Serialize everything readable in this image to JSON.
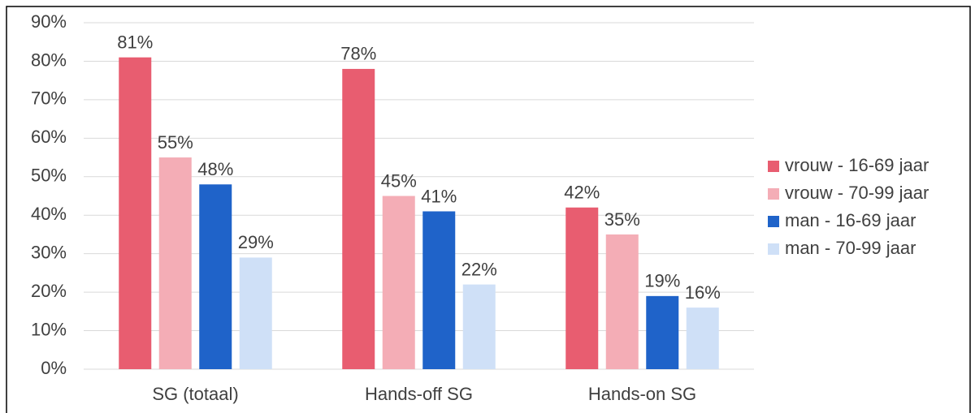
{
  "chart_data": {
    "type": "bar",
    "categories": [
      "SG (totaal)",
      "Hands-off SG",
      "Hands-on SG"
    ],
    "series": [
      {
        "name": "vrouw - 16-69 jaar",
        "color": "#e85d70",
        "values": [
          81,
          78,
          42
        ],
        "value_labels": [
          "81%",
          "78%",
          "42%"
        ]
      },
      {
        "name": "vrouw - 70-99 jaar",
        "color": "#f4adb6",
        "values": [
          55,
          45,
          35
        ],
        "value_labels": [
          "55%",
          "45%",
          "35%"
        ]
      },
      {
        "name": "man - 16-69 jaar",
        "color": "#1f63c9",
        "values": [
          48,
          41,
          19
        ],
        "value_labels": [
          "48%",
          "41%",
          "19%"
        ]
      },
      {
        "name": "man - 70-99 jaar",
        "color": "#cfe0f7",
        "values": [
          29,
          22,
          16
        ],
        "value_labels": [
          "29%",
          "22%",
          "16%"
        ]
      }
    ],
    "ylim": [
      0,
      90
    ],
    "yticks": [
      {
        "value": 0,
        "label": "0%"
      },
      {
        "value": 10,
        "label": "10%"
      },
      {
        "value": 20,
        "label": "20%"
      },
      {
        "value": 30,
        "label": "30%"
      },
      {
        "value": 40,
        "label": "40%"
      },
      {
        "value": 50,
        "label": "50%"
      },
      {
        "value": 60,
        "label": "60%"
      },
      {
        "value": 70,
        "label": "70%"
      },
      {
        "value": 80,
        "label": "80%"
      },
      {
        "value": 90,
        "label": "90%"
      }
    ],
    "grid": true,
    "legend": "right"
  }
}
